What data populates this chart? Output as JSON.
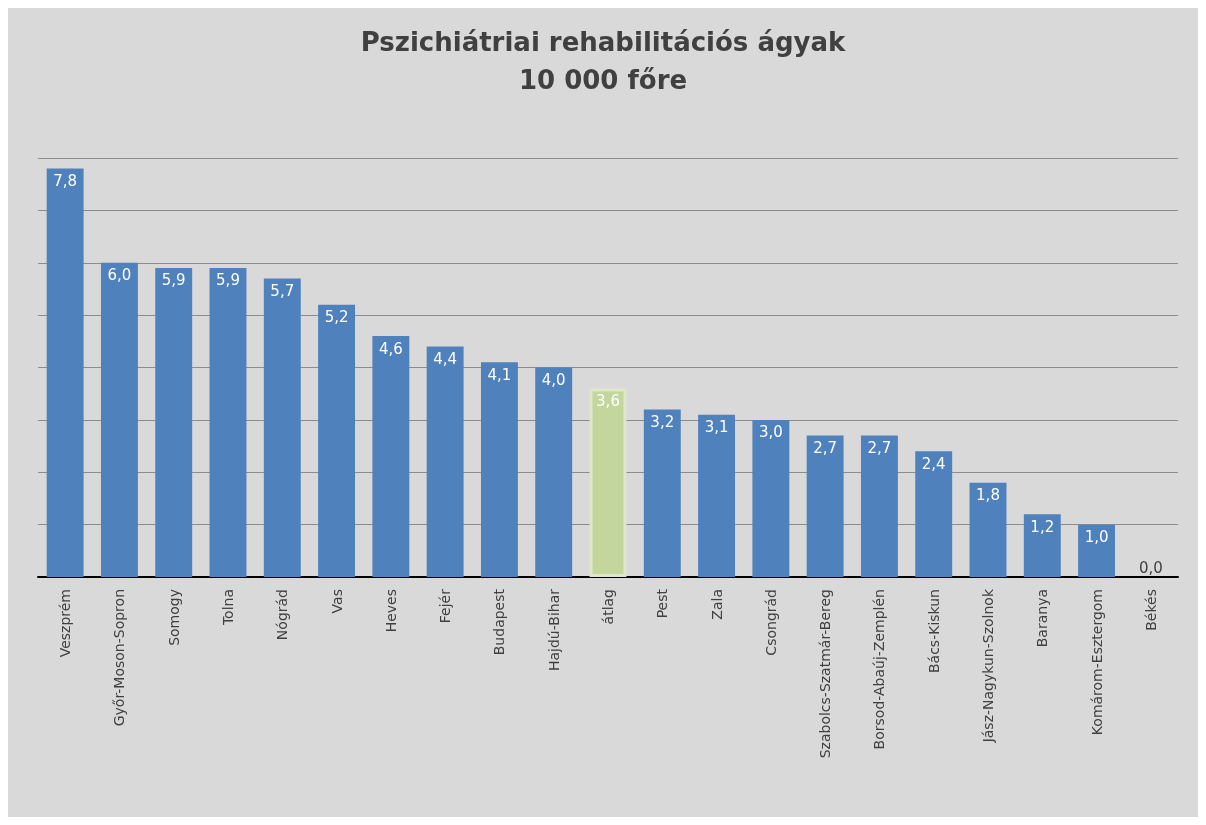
{
  "chart_data": {
    "type": "bar",
    "title": "Pszichiátriai rehabilitációs ágyak\n10 000 főre",
    "categories": [
      "Veszprém",
      "Győr-Moson-Sopron",
      "Somogy",
      "Tolna",
      "Nógrád",
      "Vas",
      "Heves",
      "Fejér",
      "Budapest",
      "Hajdú-Bihar",
      "átlag",
      "Pest",
      "Zala",
      "Csongrád",
      "Szabolcs-Szatmár-Bereg",
      "Borsod-Abaúj-Zemplén",
      "Bács-Kiskun",
      "Jász-Nagykun-Szolnok",
      "Baranya",
      "Komárom-Esztergom",
      "Békés"
    ],
    "values": [
      7.8,
      6.0,
      5.9,
      5.9,
      5.7,
      5.2,
      4.6,
      4.4,
      4.1,
      4.0,
      3.6,
      3.2,
      3.1,
      3.0,
      2.7,
      2.7,
      2.4,
      1.8,
      1.2,
      1.0,
      0.0
    ],
    "value_labels": [
      "7,8",
      "6,0",
      "5,9",
      "5,9",
      "5,7",
      "5,2",
      "4,6",
      "4,4",
      "4,1",
      "4,0",
      "3,6",
      "3,2",
      "3,1",
      "3,0",
      "2,7",
      "2,7",
      "2,4",
      "1,8",
      "1,2",
      "1,0",
      "0,0"
    ],
    "colors": [
      "#4f81bd",
      "#4f81bd",
      "#4f81bd",
      "#4f81bd",
      "#4f81bd",
      "#4f81bd",
      "#4f81bd",
      "#4f81bd",
      "#4f81bd",
      "#4f81bd",
      "#c3d69b",
      "#4f81bd",
      "#4f81bd",
      "#4f81bd",
      "#4f81bd",
      "#4f81bd",
      "#4f81bd",
      "#4f81bd",
      "#4f81bd",
      "#4f81bd",
      "#4f81bd"
    ],
    "ylim": [
      0,
      8
    ],
    "yticks": [
      0,
      1,
      2,
      3,
      4,
      5,
      6,
      7,
      8
    ],
    "grid": "y",
    "tick_labels": "x"
  }
}
